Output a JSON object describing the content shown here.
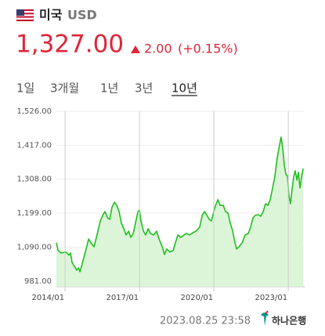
{
  "header": {
    "country": "미국",
    "currency": "USD",
    "price": "1,327.00",
    "change": "2.00",
    "change_pct": "(+0.15%)"
  },
  "tabs": [
    "1일",
    "3개월",
    "1년",
    "3년",
    "10년"
  ],
  "active_tab": 4,
  "footer": {
    "timestamp": "2023.08.25 23:58",
    "bank": "하나은행"
  },
  "chart_data": {
    "type": "line",
    "color": "#1fbf1f",
    "fill": "#dcf5d8",
    "grid": true,
    "x": [
      2013.65,
      2013.72,
      2013.84,
      2014.03,
      2014.16,
      2014.22,
      2014.28,
      2014.38,
      2014.47,
      2014.54,
      2014.6,
      2014.66,
      2014.79,
      2014.85,
      2014.95,
      2015.04,
      2015.17,
      2015.29,
      2015.42,
      2015.52,
      2015.61,
      2015.71,
      2015.8,
      2015.89,
      2015.99,
      2016.08,
      2016.18,
      2016.27,
      2016.37,
      2016.46,
      2016.56,
      2016.65,
      2016.75,
      2016.84,
      2016.94,
      2017.0,
      2017.06,
      2017.16,
      2017.25,
      2017.35,
      2017.44,
      2017.57,
      2017.69,
      2017.79,
      2017.92,
      2018.01,
      2018.1,
      2018.23,
      2018.36,
      2018.45,
      2018.55,
      2018.67,
      2018.8,
      2018.89,
      2019.02,
      2019.15,
      2019.27,
      2019.43,
      2019.53,
      2019.62,
      2019.72,
      2019.81,
      2019.9,
      2020.06,
      2020.16,
      2020.25,
      2020.38,
      2020.47,
      2020.57,
      2020.66,
      2020.76,
      2020.85,
      2020.92,
      2021.01,
      2021.14,
      2021.26,
      2021.39,
      2021.48,
      2021.58,
      2021.67,
      2021.8,
      2021.89,
      2021.99,
      2022.08,
      2022.18,
      2022.27,
      2022.37,
      2022.46,
      2022.56,
      2022.65,
      2022.71,
      2022.78,
      2022.84,
      2022.9,
      2022.97,
      2023.03,
      2023.09,
      2023.16,
      2023.22,
      2023.28,
      2023.35,
      2023.41,
      2023.47,
      2023.54,
      2023.6
    ],
    "values": [
      1104,
      1079,
      1071,
      1074,
      1064,
      1071,
      1041,
      1028,
      1016,
      1023,
      1011,
      1028,
      1066,
      1084,
      1116,
      1104,
      1091,
      1129,
      1174,
      1192,
      1204,
      1184,
      1179,
      1217,
      1234,
      1224,
      1204,
      1167,
      1149,
      1129,
      1141,
      1121,
      1134,
      1167,
      1204,
      1209,
      1174,
      1141,
      1129,
      1149,
      1134,
      1129,
      1141,
      1116,
      1091,
      1066,
      1084,
      1074,
      1079,
      1104,
      1129,
      1121,
      1129,
      1134,
      1129,
      1136,
      1141,
      1154,
      1192,
      1204,
      1192,
      1179,
      1174,
      1222,
      1242,
      1224,
      1224,
      1204,
      1199,
      1167,
      1141,
      1104,
      1084,
      1091,
      1104,
      1129,
      1134,
      1154,
      1184,
      1192,
      1194,
      1189,
      1204,
      1229,
      1224,
      1242,
      1280,
      1317,
      1380,
      1418,
      1443,
      1405,
      1355,
      1325,
      1317,
      1255,
      1229,
      1280,
      1317,
      1335,
      1305,
      1330,
      1280,
      1317,
      1342
    ],
    "xlim": [
      2013.65,
      2023.66
    ],
    "xticks": [
      {
        "value": 2014,
        "label": "2014/01"
      },
      {
        "value": 2017,
        "label": "2017/01"
      },
      {
        "value": 2020,
        "label": "2020/01"
      },
      {
        "value": 2023,
        "label": "2023/01"
      }
    ],
    "ylim": [
      963,
      1526
    ],
    "yticks": [
      {
        "value": 981,
        "label": "981.00"
      },
      {
        "value": 1090,
        "label": "1,090.00"
      },
      {
        "value": 1199,
        "label": "1,199.00"
      },
      {
        "value": 1308,
        "label": "1,308.00"
      },
      {
        "value": 1417,
        "label": "1,417.00"
      },
      {
        "value": 1526,
        "label": "1,526.00"
      }
    ]
  }
}
